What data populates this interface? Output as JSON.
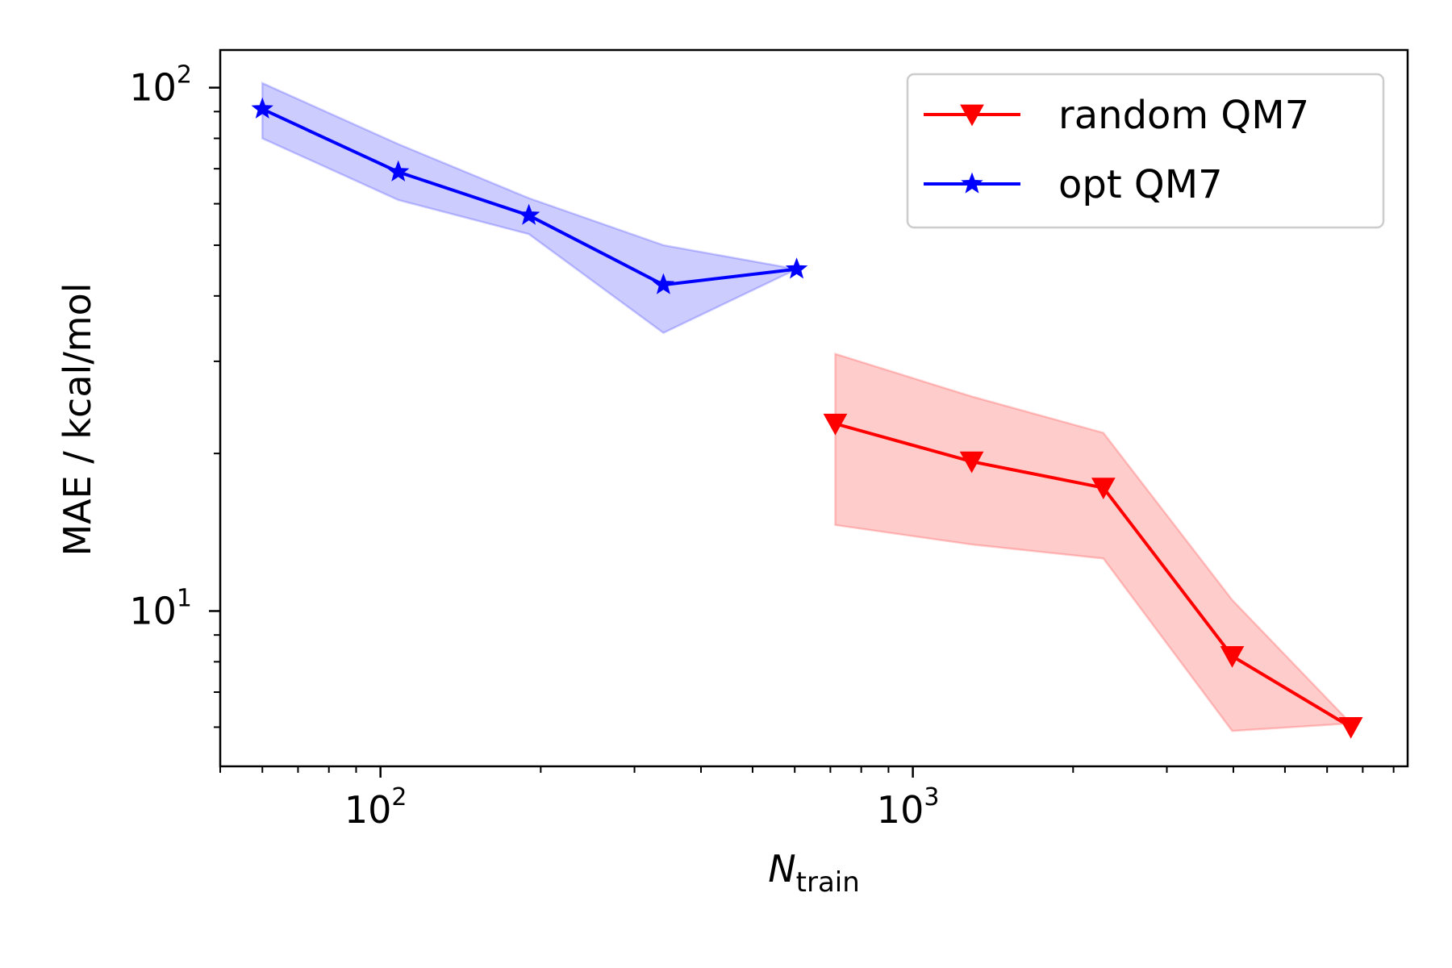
{
  "chart_data": {
    "type": "line",
    "title": "",
    "xscale": "log",
    "yscale": "log",
    "xlim": [
      50,
      8500
    ],
    "ylim": [
      5.05,
      118
    ],
    "x_major_ticks": [
      {
        "value": 100,
        "base": "10",
        "exp": "2"
      },
      {
        "value": 1000,
        "base": "10",
        "exp": "3"
      }
    ],
    "y_major_ticks": [
      {
        "value": 10,
        "base": "10",
        "exp": "1"
      },
      {
        "value": 100,
        "base": "10",
        "exp": "2"
      }
    ],
    "xlabel": {
      "main": "N",
      "sub": "train"
    },
    "ylabel": "MAE / kcal/mol",
    "legend_position": "top-right",
    "series": [
      {
        "name": "random QM7",
        "color": "#ff0000",
        "marker": "triangle-down",
        "x": [
          715,
          1290,
          2280,
          3980,
          6650
        ],
        "y": [
          22.8,
          19.3,
          17.2,
          8.2,
          6.0
        ],
        "lower": [
          14.6,
          13.4,
          12.6,
          5.9,
          6.1
        ],
        "upper": [
          31.0,
          25.7,
          21.9,
          10.5,
          6.1
        ]
      },
      {
        "name": "opt QM7",
        "color": "#0000ff",
        "marker": "star",
        "x": [
          60,
          108,
          190,
          340,
          605
        ],
        "y": [
          91.0,
          69.0,
          57.0,
          42.0,
          45.0
        ],
        "lower": [
          80.0,
          61.0,
          52.5,
          34.0,
          45.0
        ],
        "upper": [
          102.0,
          78.0,
          61.5,
          50.0,
          45.0
        ]
      }
    ]
  }
}
